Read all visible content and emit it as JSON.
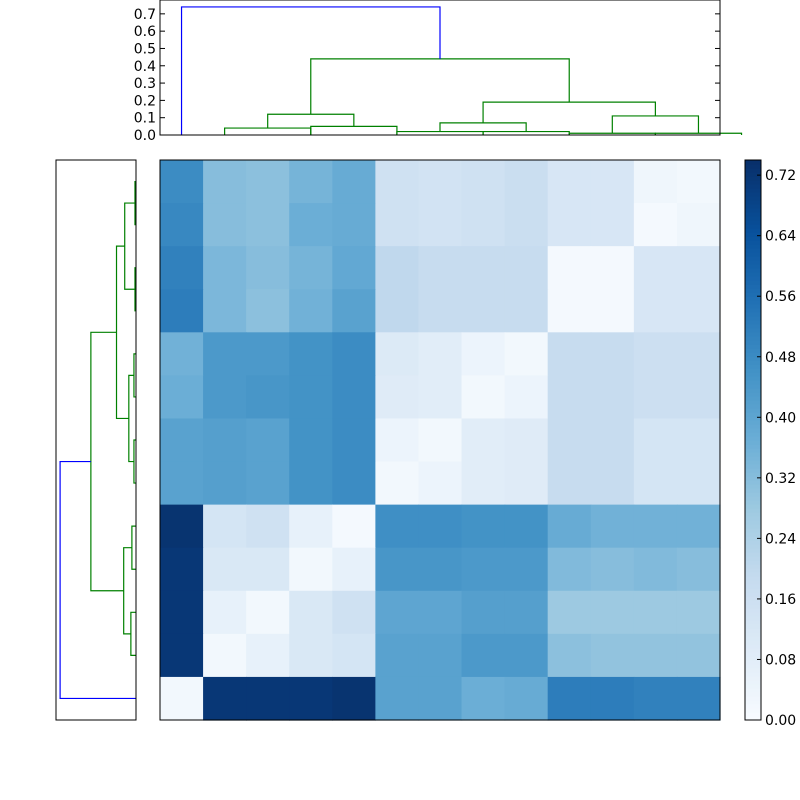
{
  "chart_data": [
    {
      "type": "heatmap",
      "colormap": "Blues",
      "rows": 13,
      "cols": 13,
      "zlim": [
        0.0,
        0.74
      ],
      "colorbar_ticks": [
        "0.00",
        "0.08",
        "0.16",
        "0.24",
        "0.32",
        "0.40",
        "0.48",
        "0.56",
        "0.64",
        "0.72"
      ],
      "values": [
        [
          0.48,
          0.32,
          0.31,
          0.35,
          0.38,
          0.15,
          0.14,
          0.15,
          0.17,
          0.12,
          0.12,
          0.03,
          0.02
        ],
        [
          0.49,
          0.32,
          0.31,
          0.37,
          0.38,
          0.15,
          0.14,
          0.15,
          0.17,
          0.12,
          0.12,
          0.01,
          0.03
        ],
        [
          0.51,
          0.34,
          0.32,
          0.35,
          0.39,
          0.2,
          0.18,
          0.18,
          0.18,
          0.01,
          0.01,
          0.12,
          0.12
        ],
        [
          0.52,
          0.34,
          0.31,
          0.36,
          0.41,
          0.2,
          0.18,
          0.18,
          0.18,
          0.01,
          0.01,
          0.12,
          0.12
        ],
        [
          0.36,
          0.44,
          0.44,
          0.46,
          0.48,
          0.1,
          0.08,
          0.04,
          0.02,
          0.18,
          0.18,
          0.16,
          0.16
        ],
        [
          0.37,
          0.44,
          0.45,
          0.46,
          0.48,
          0.09,
          0.08,
          0.02,
          0.04,
          0.18,
          0.18,
          0.16,
          0.16
        ],
        [
          0.41,
          0.42,
          0.41,
          0.46,
          0.48,
          0.04,
          0.02,
          0.08,
          0.09,
          0.18,
          0.18,
          0.13,
          0.13
        ],
        [
          0.41,
          0.42,
          0.41,
          0.46,
          0.48,
          0.02,
          0.04,
          0.08,
          0.09,
          0.18,
          0.18,
          0.13,
          0.13
        ],
        [
          0.73,
          0.13,
          0.15,
          0.06,
          0.01,
          0.47,
          0.47,
          0.46,
          0.46,
          0.38,
          0.36,
          0.36,
          0.36
        ],
        [
          0.72,
          0.11,
          0.11,
          0.02,
          0.06,
          0.45,
          0.45,
          0.44,
          0.44,
          0.33,
          0.32,
          0.33,
          0.32
        ],
        [
          0.72,
          0.06,
          0.02,
          0.11,
          0.15,
          0.4,
          0.4,
          0.42,
          0.42,
          0.28,
          0.28,
          0.28,
          0.28
        ],
        [
          0.72,
          0.02,
          0.06,
          0.11,
          0.13,
          0.41,
          0.41,
          0.44,
          0.44,
          0.31,
          0.3,
          0.3,
          0.3
        ],
        [
          0.02,
          0.72,
          0.72,
          0.72,
          0.73,
          0.41,
          0.41,
          0.37,
          0.38,
          0.52,
          0.52,
          0.51,
          0.51
        ]
      ]
    },
    {
      "type": "dendrogram",
      "orientation": "top",
      "leaf_count": 13,
      "ylim": [
        0.0,
        0.78
      ],
      "y_ticks": [
        "0.0",
        "0.1",
        "0.2",
        "0.3",
        "0.4",
        "0.5",
        "0.6",
        "0.7"
      ],
      "links": [
        {
          "left": 1.5,
          "right": 3.5,
          "h_left": 0.0,
          "h_right": 0.0,
          "height": 0.04,
          "color": "#008000"
        },
        {
          "left": 3.5,
          "right": 5.5,
          "h_left": 0.0,
          "h_right": 0.0,
          "height": 0.05,
          "color": "#008000"
        },
        {
          "left": 2.5,
          "right": 4.5,
          "h_left": 0.04,
          "h_right": 0.05,
          "height": 0.12,
          "color": "#008000"
        },
        {
          "left": 5.5,
          "right": 7.5,
          "h_left": 0.0,
          "h_right": 0.0,
          "height": 0.02,
          "color": "#008000"
        },
        {
          "left": 7.5,
          "right": 9.5,
          "h_left": 0.0,
          "h_right": 0.0,
          "height": 0.02,
          "color": "#008000"
        },
        {
          "left": 6.5,
          "right": 8.5,
          "h_left": 0.02,
          "h_right": 0.02,
          "height": 0.07,
          "color": "#008000"
        },
        {
          "left": 9.5,
          "right": 11.5,
          "h_left": 0.0,
          "h_right": 0.0,
          "height": 0.01,
          "color": "#008000"
        },
        {
          "left": 11.5,
          "right": 13.5,
          "h_left": 0.0,
          "h_right": 0.0,
          "height": 0.01,
          "color": "#008000"
        },
        {
          "left": 10.5,
          "right": 12.5,
          "h_left": 0.01,
          "h_right": 0.01,
          "height": 0.11,
          "color": "#008000"
        },
        {
          "left": 7.5,
          "right": 11.5,
          "h_left": 0.07,
          "h_right": 0.11,
          "height": 0.19,
          "color": "#008000"
        },
        {
          "left": 3.5,
          "right": 9.5,
          "h_left": 0.12,
          "h_right": 0.19,
          "height": 0.44,
          "color": "#008000"
        },
        {
          "left": 0.5,
          "right": 6.5,
          "h_left": 0.0,
          "h_right": 0.44,
          "height": 0.74,
          "color": "#0000ff"
        }
      ]
    },
    {
      "type": "dendrogram",
      "orientation": "left",
      "leaf_count": 13,
      "xlim": [
        0.0,
        0.78
      ],
      "links": [
        {
          "left": 0.5,
          "right": 1.5,
          "h_left": 0.0,
          "h_right": 0.0,
          "height": 0.01,
          "color": "#008000"
        },
        {
          "left": 2.5,
          "right": 3.5,
          "h_left": 0.0,
          "h_right": 0.0,
          "height": 0.01,
          "color": "#008000"
        },
        {
          "left": 1.0,
          "right": 3.0,
          "h_left": 0.01,
          "h_right": 0.01,
          "height": 0.11,
          "color": "#008000"
        },
        {
          "left": 4.5,
          "right": 5.5,
          "h_left": 0.0,
          "h_right": 0.0,
          "height": 0.02,
          "color": "#008000"
        },
        {
          "left": 6.5,
          "right": 7.5,
          "h_left": 0.0,
          "h_right": 0.0,
          "height": 0.02,
          "color": "#008000"
        },
        {
          "left": 5.0,
          "right": 7.0,
          "h_left": 0.02,
          "h_right": 0.02,
          "height": 0.07,
          "color": "#008000"
        },
        {
          "left": 2.0,
          "right": 6.0,
          "h_left": 0.11,
          "h_right": 0.07,
          "height": 0.19,
          "color": "#008000"
        },
        {
          "left": 8.5,
          "right": 9.5,
          "h_left": 0.0,
          "h_right": 0.0,
          "height": 0.04,
          "color": "#008000"
        },
        {
          "left": 10.5,
          "right": 11.5,
          "h_left": 0.0,
          "h_right": 0.0,
          "height": 0.05,
          "color": "#008000"
        },
        {
          "left": 9.0,
          "right": 11.0,
          "h_left": 0.04,
          "h_right": 0.05,
          "height": 0.12,
          "color": "#008000"
        },
        {
          "left": 4.0,
          "right": 10.0,
          "h_left": 0.19,
          "h_right": 0.12,
          "height": 0.44,
          "color": "#008000"
        },
        {
          "left": 7.0,
          "right": 12.5,
          "h_left": 0.44,
          "h_right": 0.0,
          "height": 0.74,
          "color": "#0000ff"
        }
      ]
    }
  ]
}
